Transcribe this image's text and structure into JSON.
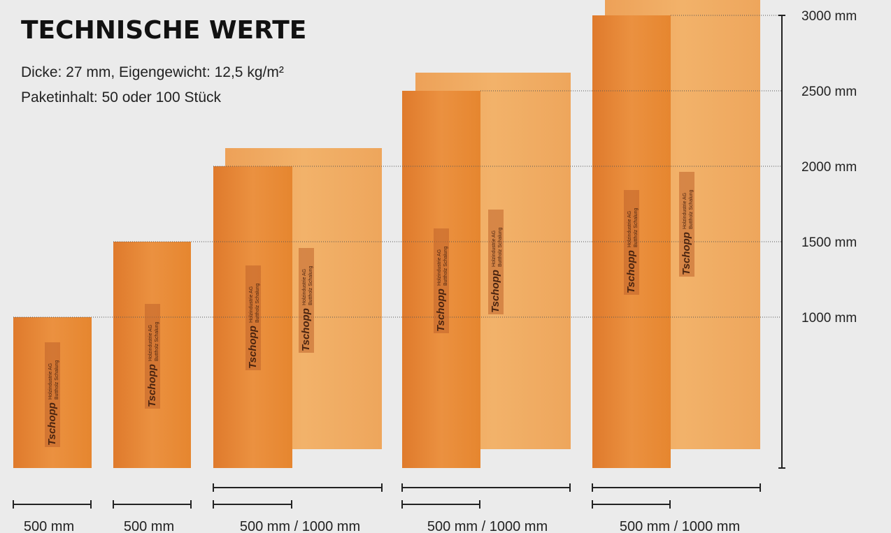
{
  "header": {
    "title": "TECHNISCHE WERTE",
    "specs": [
      "Dicke: 27 mm, Eigengewicht: 12,5 kg/m²",
      "Paketinhalt: 50 oder 100 Stück"
    ]
  },
  "scale": {
    "labels": [
      "3000 mm",
      "2500 mm",
      "2000 mm",
      "1500 mm",
      "1000 mm"
    ]
  },
  "widths": [
    "500 mm",
    "500 mm",
    "500 mm / 1000 mm",
    "500 mm / 1000 mm",
    "500 mm / 1000 mm"
  ],
  "logo": {
    "brand": "Tschopp",
    "company": "Holzindustrie AG",
    "product": "Buttholz Schalung"
  }
}
